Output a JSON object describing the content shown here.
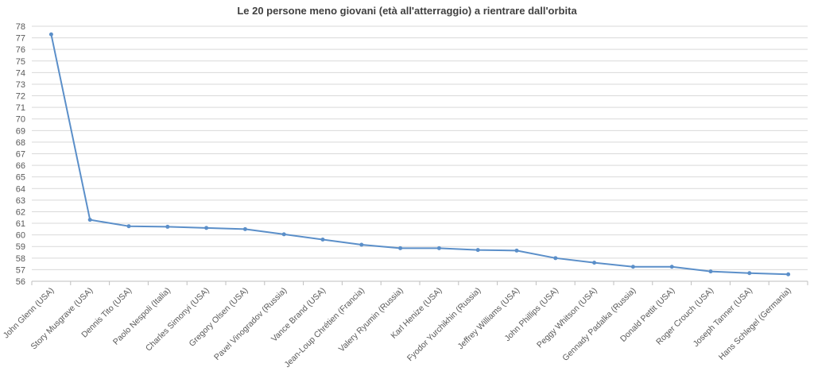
{
  "chart_data": {
    "type": "line",
    "title": "Le 20 persone meno giovani (età all'atterraggio) a rientrare dall'orbita",
    "xlabel": "",
    "ylabel": "",
    "ylim": [
      56,
      78
    ],
    "ytick_step": 1,
    "grid": true,
    "legend": "none",
    "categories": [
      "John Glenn (USA)",
      "Story Musgrave (USA)",
      "Dennis Tito (USA)",
      "Paolo Nespoli (Italia)",
      "Charles Simonyi (USA)",
      "Gregory Olsen (USA)",
      "Pavel Vinogradov (Russia)",
      "Vance Brand (USA)",
      "Jean-Loup Chrétien (Francia)",
      "Valery Ryumin (Russia)",
      "Karl Henize (USA)",
      "Fyodor Yurchikhin (Russia)",
      "Jeffrey Williams (USA)",
      "John Phillips (USA)",
      "Peggy Whitson (USA)",
      "Gennady Padalka (Russia)",
      "Donald Pettit (USA)",
      "Roger Crouch (USA)",
      "Joseph Tanner (USA)",
      "Hans Schlegel (Germania)"
    ],
    "series": [
      {
        "values": [
          77.3,
          61.3,
          60.75,
          60.7,
          60.6,
          60.5,
          60.05,
          59.6,
          59.15,
          58.85,
          58.85,
          58.7,
          58.65,
          58.0,
          57.6,
          57.25,
          57.25,
          56.85,
          56.7,
          56.6
        ],
        "color": "#5b8fc9"
      }
    ]
  }
}
